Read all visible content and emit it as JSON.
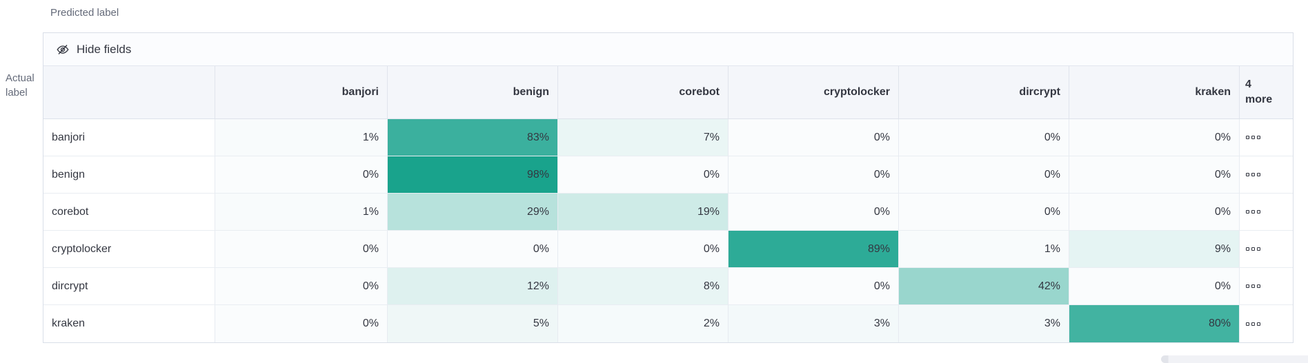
{
  "page": {
    "predicted_axis_label": "Predicted label",
    "actual_axis_label_line1": "Actual",
    "actual_axis_label_line2": "label"
  },
  "toolbar": {
    "hide_fields_label": "Hide fields",
    "icon": "eye-closed-icon"
  },
  "chart_data": {
    "type": "heatmap",
    "x_axis_label": "Predicted label",
    "y_axis_label": "Actual label",
    "columns": [
      "banjori",
      "benign",
      "corebot",
      "cryptolocker",
      "dircrypt",
      "kraken"
    ],
    "more_columns_header": "4 more",
    "more_cell_icon": "boxes-horizontal-icon",
    "value_suffix": "%",
    "heat_base_color": "#14a18a",
    "cell_background_at_zero": "#fafcfd",
    "rows": [
      {
        "label": "banjori",
        "values": [
          1,
          83,
          7,
          0,
          0,
          0
        ]
      },
      {
        "label": "benign",
        "values": [
          0,
          98,
          0,
          0,
          0,
          0
        ]
      },
      {
        "label": "corebot",
        "values": [
          1,
          29,
          19,
          0,
          0,
          0
        ]
      },
      {
        "label": "cryptolocker",
        "values": [
          0,
          0,
          0,
          89,
          1,
          9
        ]
      },
      {
        "label": "dircrypt",
        "values": [
          0,
          12,
          8,
          0,
          42,
          0
        ]
      },
      {
        "label": "kraken",
        "values": [
          0,
          5,
          2,
          3,
          3,
          80
        ]
      }
    ]
  }
}
